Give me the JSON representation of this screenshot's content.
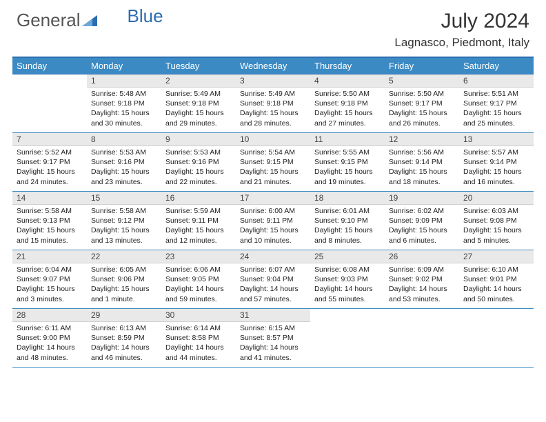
{
  "brand": {
    "part1": "General",
    "part2": "Blue"
  },
  "title": "July 2024",
  "location": "Lagnasco, Piedmont, Italy",
  "colors": {
    "header_bg": "#3b8ac4",
    "header_border": "#2a6db0",
    "daynum_bg": "#e9e9e9"
  },
  "weekdays": [
    "Sunday",
    "Monday",
    "Tuesday",
    "Wednesday",
    "Thursday",
    "Friday",
    "Saturday"
  ],
  "weeks": [
    [
      {
        "n": "",
        "sr": "",
        "ss": "",
        "dl": ""
      },
      {
        "n": "1",
        "sr": "Sunrise: 5:48 AM",
        "ss": "Sunset: 9:18 PM",
        "dl": "Daylight: 15 hours and 30 minutes."
      },
      {
        "n": "2",
        "sr": "Sunrise: 5:49 AM",
        "ss": "Sunset: 9:18 PM",
        "dl": "Daylight: 15 hours and 29 minutes."
      },
      {
        "n": "3",
        "sr": "Sunrise: 5:49 AM",
        "ss": "Sunset: 9:18 PM",
        "dl": "Daylight: 15 hours and 28 minutes."
      },
      {
        "n": "4",
        "sr": "Sunrise: 5:50 AM",
        "ss": "Sunset: 9:18 PM",
        "dl": "Daylight: 15 hours and 27 minutes."
      },
      {
        "n": "5",
        "sr": "Sunrise: 5:50 AM",
        "ss": "Sunset: 9:17 PM",
        "dl": "Daylight: 15 hours and 26 minutes."
      },
      {
        "n": "6",
        "sr": "Sunrise: 5:51 AM",
        "ss": "Sunset: 9:17 PM",
        "dl": "Daylight: 15 hours and 25 minutes."
      }
    ],
    [
      {
        "n": "7",
        "sr": "Sunrise: 5:52 AM",
        "ss": "Sunset: 9:17 PM",
        "dl": "Daylight: 15 hours and 24 minutes."
      },
      {
        "n": "8",
        "sr": "Sunrise: 5:53 AM",
        "ss": "Sunset: 9:16 PM",
        "dl": "Daylight: 15 hours and 23 minutes."
      },
      {
        "n": "9",
        "sr": "Sunrise: 5:53 AM",
        "ss": "Sunset: 9:16 PM",
        "dl": "Daylight: 15 hours and 22 minutes."
      },
      {
        "n": "10",
        "sr": "Sunrise: 5:54 AM",
        "ss": "Sunset: 9:15 PM",
        "dl": "Daylight: 15 hours and 21 minutes."
      },
      {
        "n": "11",
        "sr": "Sunrise: 5:55 AM",
        "ss": "Sunset: 9:15 PM",
        "dl": "Daylight: 15 hours and 19 minutes."
      },
      {
        "n": "12",
        "sr": "Sunrise: 5:56 AM",
        "ss": "Sunset: 9:14 PM",
        "dl": "Daylight: 15 hours and 18 minutes."
      },
      {
        "n": "13",
        "sr": "Sunrise: 5:57 AM",
        "ss": "Sunset: 9:14 PM",
        "dl": "Daylight: 15 hours and 16 minutes."
      }
    ],
    [
      {
        "n": "14",
        "sr": "Sunrise: 5:58 AM",
        "ss": "Sunset: 9:13 PM",
        "dl": "Daylight: 15 hours and 15 minutes."
      },
      {
        "n": "15",
        "sr": "Sunrise: 5:58 AM",
        "ss": "Sunset: 9:12 PM",
        "dl": "Daylight: 15 hours and 13 minutes."
      },
      {
        "n": "16",
        "sr": "Sunrise: 5:59 AM",
        "ss": "Sunset: 9:11 PM",
        "dl": "Daylight: 15 hours and 12 minutes."
      },
      {
        "n": "17",
        "sr": "Sunrise: 6:00 AM",
        "ss": "Sunset: 9:11 PM",
        "dl": "Daylight: 15 hours and 10 minutes."
      },
      {
        "n": "18",
        "sr": "Sunrise: 6:01 AM",
        "ss": "Sunset: 9:10 PM",
        "dl": "Daylight: 15 hours and 8 minutes."
      },
      {
        "n": "19",
        "sr": "Sunrise: 6:02 AM",
        "ss": "Sunset: 9:09 PM",
        "dl": "Daylight: 15 hours and 6 minutes."
      },
      {
        "n": "20",
        "sr": "Sunrise: 6:03 AM",
        "ss": "Sunset: 9:08 PM",
        "dl": "Daylight: 15 hours and 5 minutes."
      }
    ],
    [
      {
        "n": "21",
        "sr": "Sunrise: 6:04 AM",
        "ss": "Sunset: 9:07 PM",
        "dl": "Daylight: 15 hours and 3 minutes."
      },
      {
        "n": "22",
        "sr": "Sunrise: 6:05 AM",
        "ss": "Sunset: 9:06 PM",
        "dl": "Daylight: 15 hours and 1 minute."
      },
      {
        "n": "23",
        "sr": "Sunrise: 6:06 AM",
        "ss": "Sunset: 9:05 PM",
        "dl": "Daylight: 14 hours and 59 minutes."
      },
      {
        "n": "24",
        "sr": "Sunrise: 6:07 AM",
        "ss": "Sunset: 9:04 PM",
        "dl": "Daylight: 14 hours and 57 minutes."
      },
      {
        "n": "25",
        "sr": "Sunrise: 6:08 AM",
        "ss": "Sunset: 9:03 PM",
        "dl": "Daylight: 14 hours and 55 minutes."
      },
      {
        "n": "26",
        "sr": "Sunrise: 6:09 AM",
        "ss": "Sunset: 9:02 PM",
        "dl": "Daylight: 14 hours and 53 minutes."
      },
      {
        "n": "27",
        "sr": "Sunrise: 6:10 AM",
        "ss": "Sunset: 9:01 PM",
        "dl": "Daylight: 14 hours and 50 minutes."
      }
    ],
    [
      {
        "n": "28",
        "sr": "Sunrise: 6:11 AM",
        "ss": "Sunset: 9:00 PM",
        "dl": "Daylight: 14 hours and 48 minutes."
      },
      {
        "n": "29",
        "sr": "Sunrise: 6:13 AM",
        "ss": "Sunset: 8:59 PM",
        "dl": "Daylight: 14 hours and 46 minutes."
      },
      {
        "n": "30",
        "sr": "Sunrise: 6:14 AM",
        "ss": "Sunset: 8:58 PM",
        "dl": "Daylight: 14 hours and 44 minutes."
      },
      {
        "n": "31",
        "sr": "Sunrise: 6:15 AM",
        "ss": "Sunset: 8:57 PM",
        "dl": "Daylight: 14 hours and 41 minutes."
      },
      {
        "n": "",
        "sr": "",
        "ss": "",
        "dl": ""
      },
      {
        "n": "",
        "sr": "",
        "ss": "",
        "dl": ""
      },
      {
        "n": "",
        "sr": "",
        "ss": "",
        "dl": ""
      }
    ]
  ]
}
